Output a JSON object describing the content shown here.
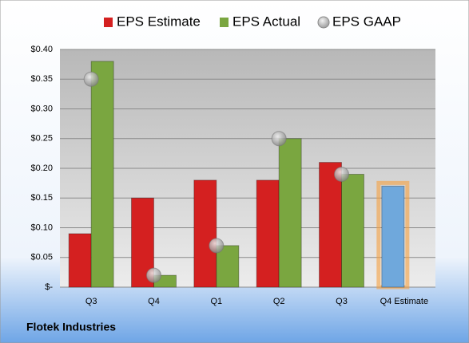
{
  "chart_data": {
    "type": "bar",
    "categories": [
      "Q3",
      "Q4",
      "Q1",
      "Q2",
      "Q3",
      "Q4 Estimate"
    ],
    "series": [
      {
        "name": "EPS Estimate",
        "color": "#d42020",
        "values": [
          0.09,
          0.15,
          0.18,
          0.18,
          0.21,
          0.17
        ]
      },
      {
        "name": "EPS Actual",
        "color": "#7aa640",
        "values": [
          0.38,
          0.02,
          0.07,
          0.25,
          0.19,
          null
        ]
      },
      {
        "name": "EPS GAAP",
        "color": "#a0a0a0",
        "marker": "circle",
        "values": [
          0.35,
          0.02,
          0.07,
          0.25,
          0.19,
          null
        ]
      }
    ],
    "forecast_color": "#6fa8dc",
    "ylim": [
      0,
      0.4
    ],
    "yticks": [
      {
        "value": 0,
        "label": "$-"
      },
      {
        "value": 0.05,
        "label": "$0.05"
      },
      {
        "value": 0.1,
        "label": "$0.10"
      },
      {
        "value": 0.15,
        "label": "$0.15"
      },
      {
        "value": 0.2,
        "label": "$0.20"
      },
      {
        "value": 0.25,
        "label": "$0.25"
      },
      {
        "value": 0.3,
        "label": "$0.30"
      },
      {
        "value": 0.35,
        "label": "$0.35"
      },
      {
        "value": 0.4,
        "label": "$0.40"
      }
    ],
    "grid": true,
    "footer": "Flotek Industries"
  }
}
